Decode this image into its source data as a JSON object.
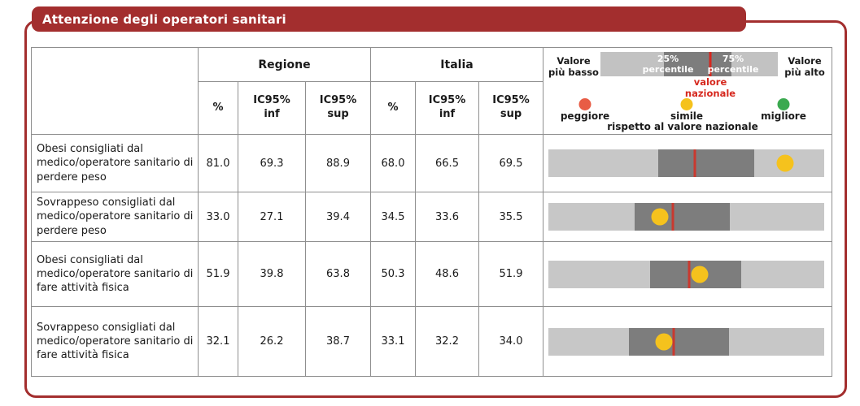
{
  "title": "Attenzione degli operatori sanitari",
  "colors": {
    "accent_red": "#a32e2e",
    "national_line_red": "#c9392f",
    "band_dark_gray": "#7d7d7d",
    "bar_light_gray": "#c7c7c7",
    "peggiore": "#e85c45",
    "simile": "#f5c21d",
    "migliore": "#3aa94f"
  },
  "table": {
    "group_headers": [
      "Regione",
      "Italia"
    ],
    "sub_headers": [
      "%",
      "IC95%\ninf",
      "IC95%\nsup",
      "%",
      "IC95%\ninf",
      "IC95%\nsup"
    ]
  },
  "legend": {
    "low": "Valore\npiù basso",
    "high": "Valore\npiù alto",
    "p25": "25%\npercentile",
    "p75": "75%\npercentile",
    "national": "valore\nnazionale",
    "worse": "peggiore",
    "similar": "simile",
    "better": "migliore",
    "similar_note": "rispetto al valore nazionale"
  },
  "rows": [
    {
      "label": "Obesi consigliati dal medico/operatore sanitario di perdere peso",
      "regione": {
        "pct": "81.0",
        "ic_inf": "69.3",
        "ic_sup": "88.9"
      },
      "italia": {
        "pct": "68.0",
        "ic_inf": "66.5",
        "ic_sup": "69.5"
      },
      "bar": {
        "band_start_pct": 39.7,
        "band_end_pct": 74.7,
        "national_pct": 53.0,
        "dot_pct": 85.9,
        "status": "simile"
      }
    },
    {
      "label": "Sovrappeso consigliati dal medico/operatore sanitario di perdere peso",
      "regione": {
        "pct": "33.0",
        "ic_inf": "27.1",
        "ic_sup": "39.4"
      },
      "italia": {
        "pct": "34.5",
        "ic_inf": "33.6",
        "ic_sup": "35.5"
      },
      "bar": {
        "band_start_pct": 31.2,
        "band_end_pct": 65.9,
        "national_pct": 45.0,
        "dot_pct": 40.3,
        "status": "simile"
      }
    },
    {
      "label": "Obesi consigliati dal medico/operatore sanitario di fare attività fisica",
      "regione": {
        "pct": "51.9",
        "ic_inf": "39.8",
        "ic_sup": "63.8"
      },
      "italia": {
        "pct": "50.3",
        "ic_inf": "48.6",
        "ic_sup": "51.9"
      },
      "bar": {
        "band_start_pct": 36.8,
        "band_end_pct": 70.0,
        "national_pct": 51.0,
        "dot_pct": 55.0,
        "status": "simile"
      }
    },
    {
      "label": "Sovrappeso consigliati dal medico/operatore sanitario di fare attività fisica",
      "regione": {
        "pct": "32.1",
        "ic_inf": "26.2",
        "ic_sup": "38.7"
      },
      "italia": {
        "pct": "33.1",
        "ic_inf": "32.2",
        "ic_sup": "34.0"
      },
      "bar": {
        "band_start_pct": 29.1,
        "band_end_pct": 65.6,
        "national_pct": 45.3,
        "dot_pct": 42.0,
        "status": "simile"
      }
    }
  ],
  "chart_data": {
    "type": "table",
    "title": "Attenzione degli operatori sanitari",
    "column_groups": [
      "Regione",
      "Italia"
    ],
    "columns": [
      "Regione %",
      "Regione IC95% inf",
      "Regione IC95% sup",
      "Italia %",
      "Italia IC95% inf",
      "Italia IC95% sup"
    ],
    "rows": [
      {
        "indicator": "Obesi consigliati dal medico/operatore sanitario di perdere peso",
        "regione": [
          81.0,
          69.3,
          88.9
        ],
        "italia": [
          68.0,
          66.5,
          69.5
        ],
        "marker": "simile"
      },
      {
        "indicator": "Sovrappeso consigliati dal medico/operatore sanitario di perdere peso",
        "regione": [
          33.0,
          27.1,
          39.4
        ],
        "italia": [
          34.5,
          33.6,
          35.5
        ],
        "marker": "simile"
      },
      {
        "indicator": "Obesi consigliati dal medico/operatore sanitario di fare attività fisica",
        "regione": [
          51.9,
          39.8,
          63.8
        ],
        "italia": [
          50.3,
          48.6,
          51.9
        ],
        "marker": "simile"
      },
      {
        "indicator": "Sovrappeso consigliati dal medico/operatore sanitario di fare attività fisica",
        "regione": [
          32.1,
          26.2,
          38.7
        ],
        "italia": [
          33.1,
          32.2,
          34.0
        ],
        "marker": "simile"
      }
    ],
    "legend": {
      "bar": "intervallo 25%-75% percentile tra le regioni, linea rossa = valore nazionale",
      "markers": {
        "peggiore": "rosso",
        "simile": "giallo",
        "migliore": "verde"
      },
      "note": "rispetto al valore nazionale"
    }
  }
}
